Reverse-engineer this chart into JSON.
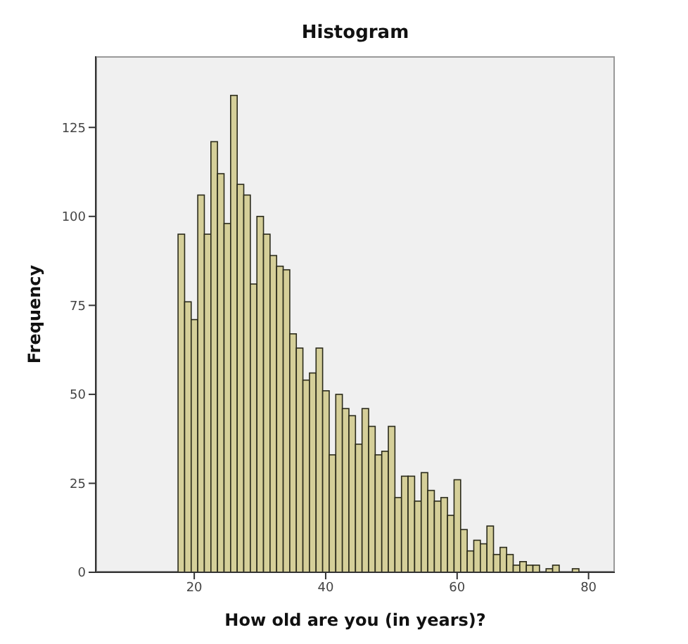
{
  "chart_data": {
    "type": "histogram",
    "title": "Histogram",
    "xlabel": "How old are you (in years)?",
    "ylabel": "Frequency",
    "bins": [
      17.5,
      18.5,
      19.5,
      20.5,
      21.5,
      22.5,
      23.5,
      24.5,
      25.5,
      26.5,
      27.5,
      28.5,
      29.5,
      30.5,
      31.5,
      32.5,
      33.5,
      34.5,
      35.5,
      36.5,
      37.5,
      38.5,
      39.5,
      40.5,
      41.5,
      42.5,
      43.5,
      44.5,
      45.5,
      46.5,
      47.5,
      48.5,
      49.5,
      50.5,
      51.5,
      52.5,
      53.5,
      54.5,
      55.5,
      56.5,
      57.5,
      58.5,
      59.5,
      60.5,
      61.5,
      62.5,
      63.5,
      64.5,
      65.5,
      66.5,
      67.5,
      68.5,
      69.5,
      70.5,
      71.5,
      72.5,
      73.5,
      74.5,
      75.5,
      76.5,
      77.5,
      78.5
    ],
    "values": [
      95,
      76,
      71,
      106,
      95,
      121,
      112,
      98,
      134,
      109,
      106,
      81,
      100,
      95,
      89,
      86,
      85,
      67,
      63,
      54,
      56,
      63,
      51,
      33,
      50,
      46,
      44,
      36,
      46,
      41,
      33,
      34,
      41,
      21,
      27,
      27,
      20,
      28,
      23,
      20,
      21,
      16,
      26,
      12,
      6,
      9,
      8,
      13,
      5,
      7,
      5,
      2,
      3,
      2,
      2,
      0,
      1,
      2,
      0,
      0,
      1
    ],
    "color": "#d5cf99",
    "xlim": [
      5,
      84
    ],
    "xticks": [
      20,
      40,
      60,
      80
    ],
    "ylim": [
      0,
      145
    ],
    "yticks": [
      0,
      25,
      50,
      75,
      100,
      125
    ],
    "grid": false
  }
}
